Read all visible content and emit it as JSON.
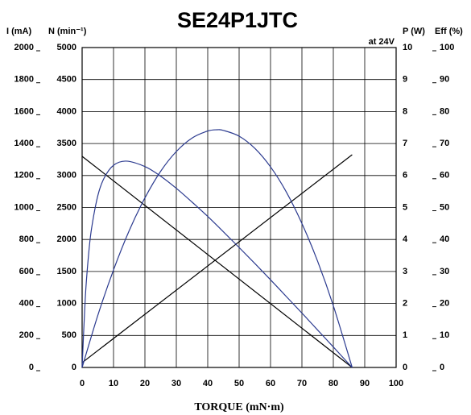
{
  "chart_data": {
    "type": "line",
    "title": "SE24P1JTC",
    "note": "at 24V",
    "xlabel": "TORQUE (mN·m)",
    "xlim": [
      0,
      100
    ],
    "xticks": [
      0,
      10,
      20,
      30,
      40,
      50,
      60,
      70,
      80,
      90,
      100
    ],
    "grid": true,
    "axes": [
      {
        "label": "I (mA)",
        "side": "left-outer",
        "lim": [
          0,
          2000
        ],
        "ticks": [
          0,
          200,
          400,
          600,
          800,
          1000,
          1200,
          1400,
          1600,
          1800,
          2000
        ]
      },
      {
        "label": "N (min⁻¹)",
        "side": "left-inner",
        "lim": [
          0,
          5000
        ],
        "ticks": [
          0,
          500,
          1000,
          1500,
          2000,
          2500,
          3000,
          3500,
          4000,
          4500,
          5000
        ]
      },
      {
        "label": "P (W)",
        "side": "right-inner",
        "lim": [
          0,
          10
        ],
        "ticks": [
          0,
          1,
          2,
          3,
          4,
          5,
          6,
          7,
          8,
          9,
          10
        ]
      },
      {
        "label": "Eff (%)",
        "side": "right-outer",
        "lim": [
          0,
          100
        ],
        "ticks": [
          0,
          10,
          20,
          30,
          40,
          50,
          60,
          70,
          80,
          90,
          100
        ]
      }
    ],
    "series": [
      {
        "axis": 1,
        "color": "#000000",
        "x": [
          0,
          86
        ],
        "values": [
          3300,
          0
        ]
      },
      {
        "axis": 0,
        "color": "#000000",
        "x": [
          0,
          86
        ],
        "values": [
          30,
          1330
        ]
      },
      {
        "axis": 2,
        "color": "#2b3a8f",
        "x": [
          0,
          5,
          10,
          15,
          20,
          25,
          30,
          35,
          40,
          43,
          45,
          50,
          55,
          60,
          65,
          70,
          75,
          80,
          86
        ],
        "values": [
          0,
          1.63,
          3.05,
          4.28,
          5.3,
          6.13,
          6.75,
          7.17,
          7.39,
          7.43,
          7.41,
          7.23,
          6.85,
          6.27,
          5.49,
          4.5,
          3.32,
          1.93,
          0
        ]
      },
      {
        "axis": 3,
        "color": "#2b3a8f",
        "x": [
          0,
          1,
          2,
          3,
          5,
          7,
          10,
          14,
          20,
          25,
          30,
          35,
          40,
          45,
          50,
          55,
          60,
          65,
          70,
          75,
          80,
          86
        ],
        "values": [
          0,
          21.6,
          34.7,
          43.4,
          53.7,
          59.2,
          63.2,
          64.5,
          62.8,
          59.8,
          56,
          51.7,
          47.2,
          42.4,
          37.5,
          32.5,
          27.4,
          22.2,
          17,
          11.7,
          6.4,
          0
        ]
      }
    ]
  }
}
